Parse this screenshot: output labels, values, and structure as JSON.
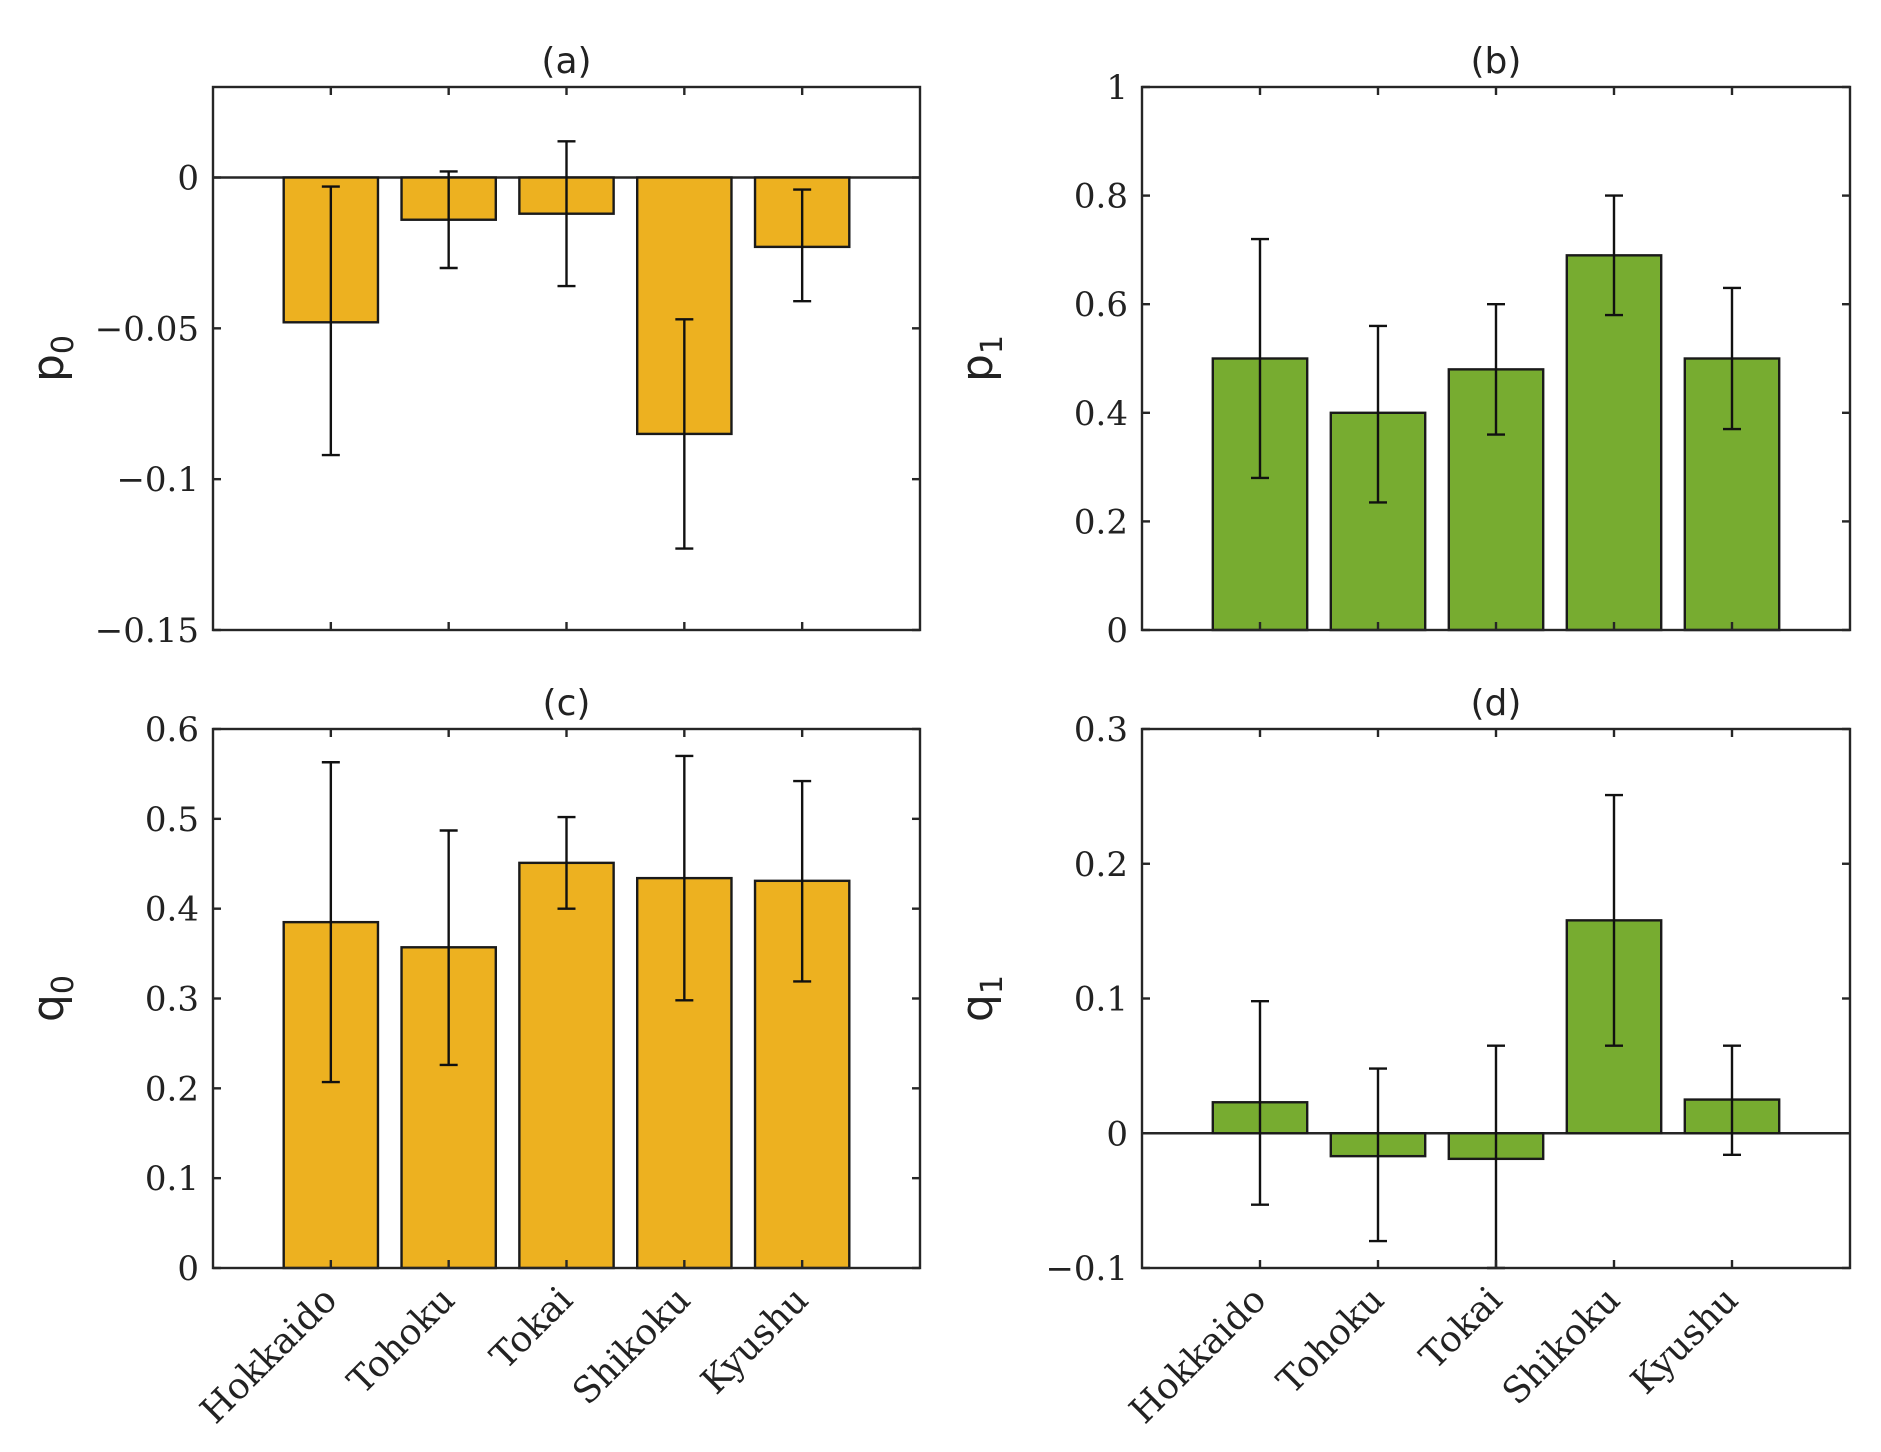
{
  "categories": [
    "Hokkaido",
    "Tohoku",
    "Tokai",
    "Shikoku",
    "Kyushu"
  ],
  "colors": {
    "yellow": "#EDB120",
    "green": "#77AC30",
    "axis": "#262626"
  },
  "chart_data": [
    {
      "id": "a",
      "type": "bar",
      "title": "(a)",
      "ylabel": {
        "base": "p",
        "sub": "0"
      },
      "ylim": [
        -0.15,
        0.03
      ],
      "yticks": [
        0,
        -0.05,
        -0.1,
        -0.15
      ],
      "ytick_labels": [
        "0",
        "−0.05",
        "−0.1",
        "−0.15"
      ],
      "values": [
        -0.048,
        -0.014,
        -0.012,
        -0.085,
        -0.023
      ],
      "err_low": [
        -0.092,
        -0.03,
        -0.036,
        -0.123,
        -0.041
      ],
      "err_high": [
        -0.003,
        0.002,
        0.012,
        -0.047,
        -0.004
      ],
      "color": "yellow",
      "show_xlabels": false,
      "zero_line": true
    },
    {
      "id": "b",
      "type": "bar",
      "title": "(b)",
      "ylabel": {
        "base": "p",
        "sub": "1"
      },
      "ylim": [
        0,
        1
      ],
      "yticks": [
        0,
        0.2,
        0.4,
        0.6,
        0.8,
        1
      ],
      "ytick_labels": [
        "0",
        "0.2",
        "0.4",
        "0.6",
        "0.8",
        "1"
      ],
      "values": [
        0.5,
        0.4,
        0.48,
        0.69,
        0.5
      ],
      "err_low": [
        0.28,
        0.235,
        0.36,
        0.58,
        0.37
      ],
      "err_high": [
        0.72,
        0.56,
        0.6,
        0.8,
        0.63
      ],
      "color": "green",
      "show_xlabels": false,
      "zero_line": false
    },
    {
      "id": "c",
      "type": "bar",
      "title": "(c)",
      "ylabel": {
        "base": "q",
        "sub": "0"
      },
      "ylim": [
        0,
        0.6
      ],
      "yticks": [
        0,
        0.1,
        0.2,
        0.3,
        0.4,
        0.5,
        0.6
      ],
      "ytick_labels": [
        "0",
        "0.1",
        "0.2",
        "0.3",
        "0.4",
        "0.5",
        "0.6"
      ],
      "values": [
        0.385,
        0.357,
        0.451,
        0.434,
        0.431
      ],
      "err_low": [
        0.207,
        0.226,
        0.4,
        0.298,
        0.319
      ],
      "err_high": [
        0.563,
        0.487,
        0.502,
        0.57,
        0.542
      ],
      "color": "yellow",
      "show_xlabels": true,
      "zero_line": false
    },
    {
      "id": "d",
      "type": "bar",
      "title": "(d)",
      "ylabel": {
        "base": "q",
        "sub": "1"
      },
      "ylim": [
        -0.1,
        0.3
      ],
      "yticks": [
        -0.1,
        0,
        0.1,
        0.2,
        0.3
      ],
      "ytick_labels": [
        "−0.1",
        "0",
        "0.1",
        "0.2",
        "0.3"
      ],
      "values": [
        0.023,
        -0.017,
        -0.019,
        0.158,
        0.025
      ],
      "err_low": [
        -0.053,
        -0.08,
        -0.1,
        0.065,
        -0.016
      ],
      "err_high": [
        0.098,
        0.048,
        0.065,
        0.251,
        0.065
      ],
      "color": "green",
      "show_xlabels": true,
      "zero_line": true
    }
  ]
}
